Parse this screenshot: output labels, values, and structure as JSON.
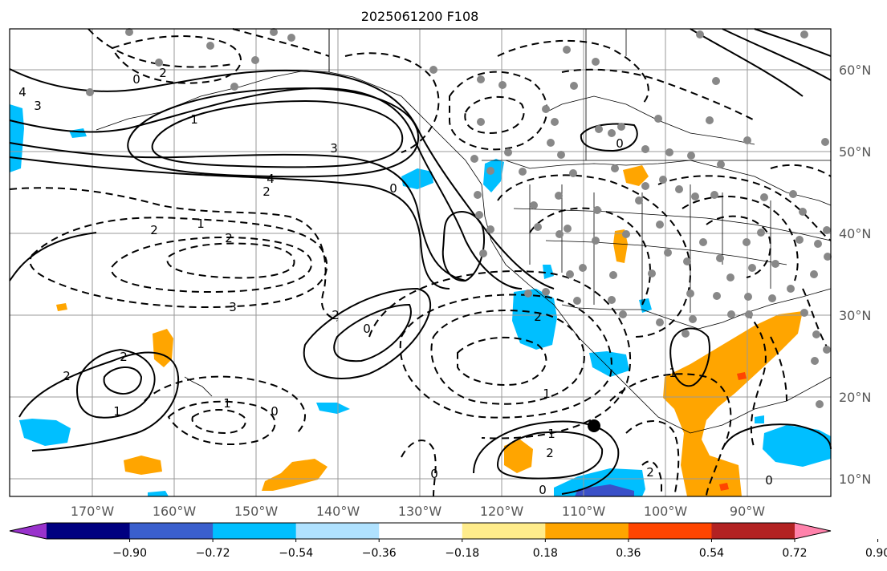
{
  "title": "2025061200 F108",
  "map": {
    "lon_ticks": [
      "170°W",
      "160°W",
      "150°W",
      "140°W",
      "130°W",
      "120°W",
      "110°W",
      "100°W",
      "90°W"
    ],
    "lat_ticks": [
      "60°N",
      "50°N",
      "40°N",
      "30°N",
      "20°N",
      "10°N"
    ],
    "contour_labels": [
      "4",
      "3",
      "0",
      "2",
      "1",
      "3",
      "4",
      "2",
      "0",
      "2",
      "1",
      "2",
      "3",
      "2",
      "0",
      "2",
      "2",
      "1",
      "0",
      "1",
      "2",
      "0",
      "1",
      "0",
      "1",
      "0",
      "2",
      "1",
      "2",
      "0"
    ],
    "colors": {
      "dot": "#888888",
      "orange": "#ffa500",
      "blue": "#00bfff",
      "darkblue": "#3a50c8"
    }
  },
  "colorbar": {
    "ticks": [
      "−0.90",
      "−0.72",
      "−0.54",
      "−0.36",
      "−0.18",
      "0.18",
      "0.36",
      "0.54",
      "0.72",
      "0.90"
    ],
    "colors": [
      "#9932cc",
      "#000080",
      "#3a5fcd",
      "#00bfff",
      "#b0e2ff",
      "#ffffff",
      "#ffec8b",
      "#ffa500",
      "#ff4500",
      "#b22222",
      "#ff82ab"
    ]
  }
}
